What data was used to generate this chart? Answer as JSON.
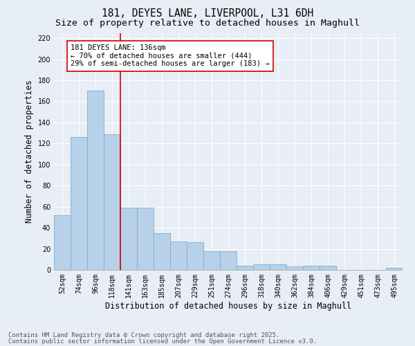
{
  "title_line1": "181, DEYES LANE, LIVERPOOL, L31 6DH",
  "title_line2": "Size of property relative to detached houses in Maghull",
  "xlabel": "Distribution of detached houses by size in Maghull",
  "ylabel": "Number of detached properties",
  "categories": [
    "52sqm",
    "74sqm",
    "96sqm",
    "118sqm",
    "141sqm",
    "163sqm",
    "185sqm",
    "207sqm",
    "229sqm",
    "251sqm",
    "274sqm",
    "296sqm",
    "318sqm",
    "340sqm",
    "362sqm",
    "384sqm",
    "406sqm",
    "429sqm",
    "451sqm",
    "473sqm",
    "495sqm"
  ],
  "values": [
    52,
    126,
    170,
    129,
    59,
    59,
    35,
    27,
    26,
    18,
    18,
    4,
    5,
    5,
    3,
    4,
    4,
    0,
    0,
    0,
    2
  ],
  "bar_color": "#b8d0e8",
  "bar_edge_color": "#7aaed4",
  "background_color": "#e8eef5",
  "grid_color": "#ffffff",
  "vline_x": 3.5,
  "vline_color": "#cc0000",
  "annotation_text": "181 DEYES LANE: 136sqm\n← 70% of detached houses are smaller (444)\n29% of semi-detached houses are larger (183) →",
  "annotation_box_facecolor": "#ffffff",
  "annotation_box_edgecolor": "#cc0000",
  "ylim": [
    0,
    225
  ],
  "yticks": [
    0,
    20,
    40,
    60,
    80,
    100,
    120,
    140,
    160,
    180,
    200,
    220
  ],
  "footer_line1": "Contains HM Land Registry data © Crown copyright and database right 2025.",
  "footer_line2": "Contains public sector information licensed under the Open Government Licence v3.0.",
  "title_fontsize": 10.5,
  "subtitle_fontsize": 9.5,
  "axis_label_fontsize": 8.5,
  "tick_fontsize": 7,
  "annotation_fontsize": 7.5,
  "footer_fontsize": 6.5
}
